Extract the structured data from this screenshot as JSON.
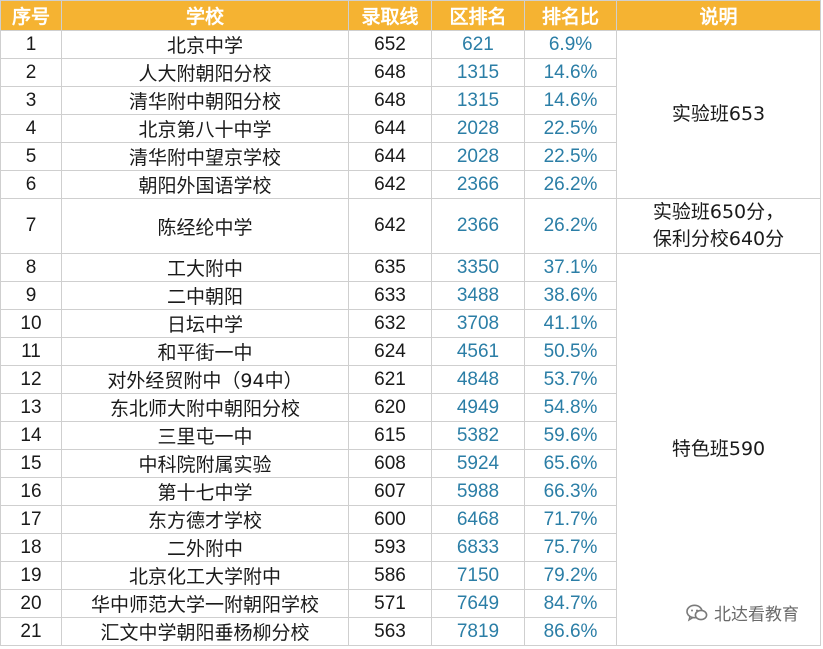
{
  "headers": [
    "序号",
    "学校",
    "录取线",
    "区排名",
    "排名比",
    "说明"
  ],
  "rows": [
    {
      "no": "1",
      "school": "北京中学",
      "score": "652",
      "rank": "621",
      "ratio": "6.9%"
    },
    {
      "no": "2",
      "school": "人大附朝阳分校",
      "score": "648",
      "rank": "1315",
      "ratio": "14.6%"
    },
    {
      "no": "3",
      "school": "清华附中朝阳分校",
      "score": "648",
      "rank": "1315",
      "ratio": "14.6%"
    },
    {
      "no": "4",
      "school": "北京第八十中学",
      "score": "644",
      "rank": "2028",
      "ratio": "22.5%"
    },
    {
      "no": "5",
      "school": "清华附中望京学校",
      "score": "644",
      "rank": "2028",
      "ratio": "22.5%"
    },
    {
      "no": "6",
      "school": "朝阳外国语学校",
      "score": "642",
      "rank": "2366",
      "ratio": "26.2%"
    },
    {
      "no": "7",
      "school": "陈经纶中学",
      "score": "642",
      "rank": "2366",
      "ratio": "26.2%"
    },
    {
      "no": "8",
      "school": "工大附中",
      "score": "635",
      "rank": "3350",
      "ratio": "37.1%"
    },
    {
      "no": "9",
      "school": "二中朝阳",
      "score": "633",
      "rank": "3488",
      "ratio": "38.6%"
    },
    {
      "no": "10",
      "school": "日坛中学",
      "score": "632",
      "rank": "3708",
      "ratio": "41.1%"
    },
    {
      "no": "11",
      "school": "和平街一中",
      "score": "624",
      "rank": "4561",
      "ratio": "50.5%"
    },
    {
      "no": "12",
      "school": "对外经贸附中（94中）",
      "score": "621",
      "rank": "4848",
      "ratio": "53.7%"
    },
    {
      "no": "13",
      "school": "东北师大附中朝阳分校",
      "score": "620",
      "rank": "4949",
      "ratio": "54.8%"
    },
    {
      "no": "14",
      "school": "三里屯一中",
      "score": "615",
      "rank": "5382",
      "ratio": "59.6%"
    },
    {
      "no": "15",
      "school": "中科院附属实验",
      "score": "608",
      "rank": "5924",
      "ratio": "65.6%"
    },
    {
      "no": "16",
      "school": "第十七中学",
      "score": "607",
      "rank": "5988",
      "ratio": "66.3%"
    },
    {
      "no": "17",
      "school": "东方德才学校",
      "score": "600",
      "rank": "6468",
      "ratio": "71.7%"
    },
    {
      "no": "18",
      "school": "二外附中",
      "score": "593",
      "rank": "6833",
      "ratio": "75.7%"
    },
    {
      "no": "19",
      "school": "北京化工大学附中",
      "score": "586",
      "rank": "7150",
      "ratio": "79.2%"
    },
    {
      "no": "20",
      "school": "华中师范大学一附朝阳学校",
      "score": "571",
      "rank": "7649",
      "ratio": "84.7%"
    },
    {
      "no": "21",
      "school": "汇文中学朝阳垂杨柳分校",
      "score": "563",
      "rank": "7819",
      "ratio": "86.6%"
    }
  ],
  "notes": {
    "row4": "实验班653",
    "row7_line1": "实验班650分，",
    "row7_line2": "保利分校640分",
    "row18": "特色班590"
  },
  "watermark": {
    "text": "北达看教育",
    "icon": "wechat-icon"
  },
  "colors": {
    "header_bg": "#f5b332",
    "rank_text": "#2b7ea6"
  }
}
